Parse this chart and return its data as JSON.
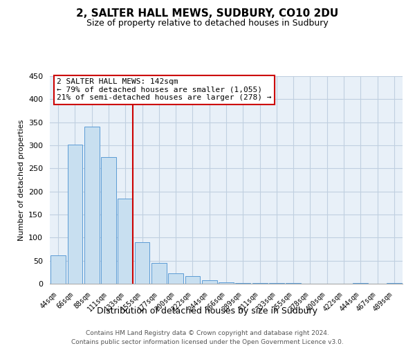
{
  "title": "2, SALTER HALL MEWS, SUDBURY, CO10 2DU",
  "subtitle": "Size of property relative to detached houses in Sudbury",
  "xlabel": "Distribution of detached houses by size in Sudbury",
  "ylabel": "Number of detached properties",
  "bar_labels": [
    "44sqm",
    "66sqm",
    "88sqm",
    "111sqm",
    "133sqm",
    "155sqm",
    "177sqm",
    "200sqm",
    "222sqm",
    "244sqm",
    "266sqm",
    "289sqm",
    "311sqm",
    "333sqm",
    "355sqm",
    "378sqm",
    "400sqm",
    "422sqm",
    "444sqm",
    "467sqm",
    "489sqm"
  ],
  "bar_values": [
    62,
    301,
    340,
    274,
    184,
    90,
    45,
    23,
    16,
    7,
    3,
    2,
    2,
    1,
    1,
    0,
    0,
    0,
    1,
    0,
    1
  ],
  "bar_color": "#c8dff0",
  "bar_edge_color": "#5b9bd5",
  "property_line_color": "#cc0000",
  "annotation_title": "2 SALTER HALL MEWS: 142sqm",
  "annotation_line1": "← 79% of detached houses are smaller (1,055)",
  "annotation_line2": "21% of semi-detached houses are larger (278) →",
  "annotation_box_color": "#ffffff",
  "annotation_box_edge": "#cc0000",
  "ylim": [
    0,
    450
  ],
  "yticks": [
    0,
    50,
    100,
    150,
    200,
    250,
    300,
    350,
    400,
    450
  ],
  "bg_color": "#e8f0f8",
  "grid_color": "#c0cfe0",
  "footer1": "Contains HM Land Registry data © Crown copyright and database right 2024.",
  "footer2": "Contains public sector information licensed under the Open Government Licence v3.0."
}
